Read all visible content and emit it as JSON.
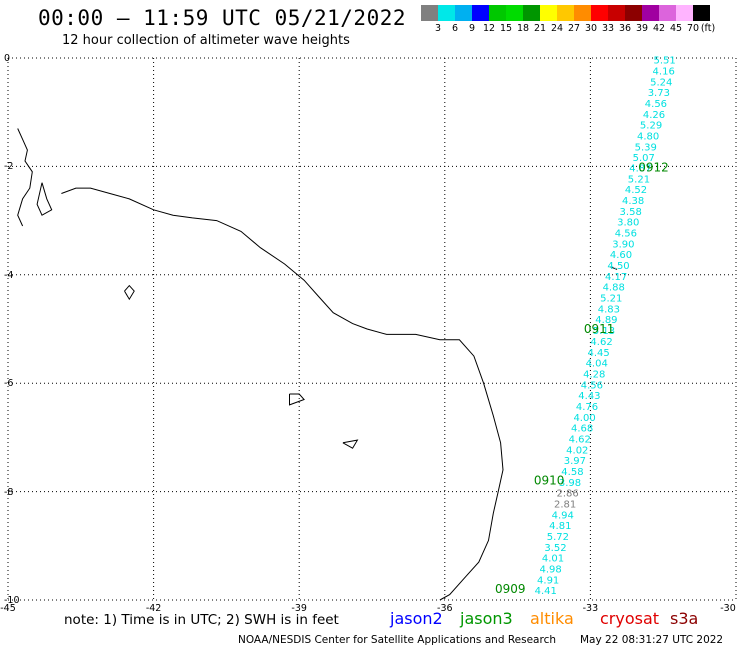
{
  "header": {
    "title": "00:00 – 11:59 UTC 05/21/2022",
    "subtitle": "12 hour collection of altimeter wave heights"
  },
  "colorbar": {
    "unit": "(ft)",
    "bins": [
      {
        "label": "3",
        "color": "#808080"
      },
      {
        "label": "6",
        "color": "#00e8e8"
      },
      {
        "label": "9",
        "color": "#00b0f0"
      },
      {
        "label": "12",
        "color": "#0000ff"
      },
      {
        "label": "15",
        "color": "#00c800"
      },
      {
        "label": "18",
        "color": "#00dc00"
      },
      {
        "label": "21",
        "color": "#009600"
      },
      {
        "label": "24",
        "color": "#ffff00"
      },
      {
        "label": "27",
        "color": "#ffc800"
      },
      {
        "label": "30",
        "color": "#ff8c00"
      },
      {
        "label": "33",
        "color": "#ff0000"
      },
      {
        "label": "36",
        "color": "#c80000"
      },
      {
        "label": "39",
        "color": "#8c0000"
      },
      {
        "label": "42",
        "color": "#a000a0"
      },
      {
        "label": "45",
        "color": "#dc64dc"
      },
      {
        "label": "70",
        "color": "#ffb4ff"
      },
      {
        "label": "",
        "color": "#000000"
      }
    ]
  },
  "axes": {
    "lon_ticks": [
      "-45",
      "-42",
      "-39",
      "-36",
      "-33",
      "-30"
    ],
    "lat_ticks": [
      "0",
      "-2",
      "-4",
      "-6",
      "-8",
      "-10"
    ],
    "lon_range": [
      -45,
      -30
    ],
    "lat_range": [
      -10,
      0
    ],
    "grid": "dotted"
  },
  "track": {
    "color_low": "#00e0e0",
    "color_min": "#808080",
    "time_color": "#008800",
    "swh": [
      {
        "v": "5.51",
        "lon": -31.47,
        "lat": -0.03
      },
      {
        "v": "4.16",
        "lon": -31.49,
        "lat": -0.23
      },
      {
        "v": "5.24",
        "lon": -31.54,
        "lat": -0.43
      },
      {
        "v": "3.73",
        "lon": -31.59,
        "lat": -0.63
      },
      {
        "v": "4.56",
        "lon": -31.65,
        "lat": -0.83
      },
      {
        "v": "4.26",
        "lon": -31.69,
        "lat": -1.03
      },
      {
        "v": "5.29",
        "lon": -31.75,
        "lat": -1.23
      },
      {
        "v": "4.80",
        "lon": -31.81,
        "lat": -1.43
      },
      {
        "v": "5.39",
        "lon": -31.86,
        "lat": -1.63
      },
      {
        "v": "5.07",
        "lon": -31.9,
        "lat": -1.83
      },
      {
        "v": "4.87",
        "lon": -31.97,
        "lat": -2.02
      },
      {
        "v": "5.21",
        "lon": -32.0,
        "lat": -2.22
      },
      {
        "v": "4.52",
        "lon": -32.06,
        "lat": -2.42
      },
      {
        "v": "4.38",
        "lon": -32.12,
        "lat": -2.62
      },
      {
        "v": "3.58",
        "lon": -32.17,
        "lat": -2.82
      },
      {
        "v": "3.80",
        "lon": -32.22,
        "lat": -3.02
      },
      {
        "v": "4.56",
        "lon": -32.27,
        "lat": -3.22
      },
      {
        "v": "3.90",
        "lon": -32.32,
        "lat": -3.42
      },
      {
        "v": "4.60",
        "lon": -32.37,
        "lat": -3.62
      },
      {
        "v": "4.50",
        "lon": -32.42,
        "lat": -3.82
      },
      {
        "v": "4.17",
        "lon": -32.47,
        "lat": -4.02
      },
      {
        "v": "4.88",
        "lon": -32.52,
        "lat": -4.22
      },
      {
        "v": "5.21",
        "lon": -32.57,
        "lat": -4.42
      },
      {
        "v": "4.83",
        "lon": -32.62,
        "lat": -4.62
      },
      {
        "v": "4.89",
        "lon": -32.67,
        "lat": -4.82
      },
      {
        "v": "5.13",
        "lon": -32.72,
        "lat": -5.02
      },
      {
        "v": "4.62",
        "lon": -32.77,
        "lat": -5.22
      },
      {
        "v": "4.45",
        "lon": -32.83,
        "lat": -5.42
      },
      {
        "v": "4.04",
        "lon": -32.87,
        "lat": -5.62
      },
      {
        "v": "4.28",
        "lon": -32.92,
        "lat": -5.82
      },
      {
        "v": "4.56",
        "lon": -32.97,
        "lat": -6.02
      },
      {
        "v": "4.43",
        "lon": -33.02,
        "lat": -6.22
      },
      {
        "v": "4.76",
        "lon": -33.07,
        "lat": -6.42
      },
      {
        "v": "4.00",
        "lon": -33.12,
        "lat": -6.62
      },
      {
        "v": "4.68",
        "lon": -33.17,
        "lat": -6.82
      },
      {
        "v": "4.62",
        "lon": -33.22,
        "lat": -7.02
      },
      {
        "v": "4.02",
        "lon": -33.27,
        "lat": -7.22
      },
      {
        "v": "3.97",
        "lon": -33.32,
        "lat": -7.42
      },
      {
        "v": "4.58",
        "lon": -33.37,
        "lat": -7.62
      },
      {
        "v": "3.98",
        "lon": -33.42,
        "lat": -7.82
      },
      {
        "v": "2.86",
        "lon": -33.47,
        "lat": -8.02,
        "low": true
      },
      {
        "v": "2.81",
        "lon": -33.52,
        "lat": -8.22,
        "low": true
      },
      {
        "v": "4.94",
        "lon": -33.57,
        "lat": -8.42
      },
      {
        "v": "4.81",
        "lon": -33.62,
        "lat": -8.62
      },
      {
        "v": "5.72",
        "lon": -33.67,
        "lat": -8.82
      },
      {
        "v": "3.52",
        "lon": -33.72,
        "lat": -9.02
      },
      {
        "v": "4.01",
        "lon": -33.77,
        "lat": -9.22
      },
      {
        "v": "4.98",
        "lon": -33.82,
        "lat": -9.42
      },
      {
        "v": "4.91",
        "lon": -33.87,
        "lat": -9.62
      },
      {
        "v": "4.41",
        "lon": -33.92,
        "lat": -9.82
      }
    ],
    "times": [
      {
        "t": "0912",
        "lon": -31.7,
        "lat": -2.0
      },
      {
        "t": "0911",
        "lon": -32.82,
        "lat": -4.98
      },
      {
        "t": "0910",
        "lon": -33.85,
        "lat": -7.78
      },
      {
        "t": "0909",
        "lon": -34.65,
        "lat": -9.78
      }
    ]
  },
  "footer": {
    "note": "note:  1) Time is in UTC;  2) SWH is in feet",
    "satellites": [
      {
        "name": "jason2",
        "color": "#0000ff"
      },
      {
        "name": "jason3",
        "color": "#009600"
      },
      {
        "name": "altika",
        "color": "#ff8c00"
      },
      {
        "name": "cryosat",
        "color": "#e00000"
      },
      {
        "name": "s3a",
        "color": "#8c0000"
      }
    ],
    "credit": "NOAA/NESDIS Center for Satellite Applications and Research",
    "timestamp": "May 22 08:31:27 UTC 2022"
  }
}
